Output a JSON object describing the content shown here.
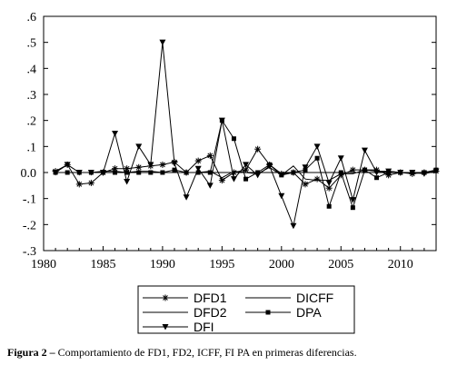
{
  "chart_data": {
    "type": "line",
    "x": [
      1981,
      1982,
      1983,
      1984,
      1985,
      1986,
      1987,
      1988,
      1989,
      1990,
      1991,
      1992,
      1993,
      1994,
      1995,
      1996,
      1997,
      1998,
      1999,
      2000,
      2001,
      2002,
      2003,
      2004,
      2005,
      2006,
      2007,
      2008,
      2009,
      2010,
      2011,
      2012,
      2013
    ],
    "xlim": [
      1980,
      2013
    ],
    "ylim": [
      -0.3,
      0.6
    ],
    "x_ticks": [
      "1980",
      "1985",
      "1990",
      "1995",
      "2000",
      "2005",
      "2010"
    ],
    "x_tick_values": [
      1980,
      1985,
      1990,
      1995,
      2000,
      2005,
      2010
    ],
    "y_ticks": [
      ".6",
      ".5",
      ".4",
      ".3",
      ".2",
      ".1",
      "0.0",
      "-.1",
      "-.2",
      "-.3"
    ],
    "y_tick_values": [
      0.6,
      0.5,
      0.4,
      0.3,
      0.2,
      0.1,
      0.0,
      -0.1,
      -0.2,
      -0.3
    ],
    "grid": false,
    "legend_position": "bottom",
    "series": [
      {
        "name": "DFD1",
        "marker": "star",
        "values": [
          0.005,
          0.03,
          -0.045,
          -0.04,
          0.0,
          0.015,
          0.015,
          0.02,
          0.025,
          0.03,
          0.04,
          0.0,
          0.045,
          0.065,
          -0.03,
          0.0,
          0.01,
          0.09,
          0.03,
          -0.005,
          0.0,
          -0.045,
          -0.025,
          -0.06,
          -0.01,
          0.01,
          0.01,
          0.01,
          -0.01,
          0.0,
          -0.005,
          0.0,
          0.005
        ]
      },
      {
        "name": "DICFF",
        "marker": "none",
        "values": [
          0.0,
          0.0,
          0.0,
          0.0,
          0.0,
          0.0,
          0.0,
          0.0,
          0.0,
          0.0,
          0.0,
          0.0,
          0.0,
          0.0,
          0.0,
          0.0,
          0.0,
          0.0,
          0.0,
          0.0,
          0.0,
          0.0,
          0.0,
          0.0,
          0.0,
          0.0,
          0.0,
          0.0,
          0.0,
          0.0,
          0.0,
          0.0,
          0.0
        ]
      },
      {
        "name": "DFD2",
        "marker": "none",
        "values": [
          0.0,
          0.0,
          0.0,
          0.0,
          0.005,
          0.005,
          0.0,
          0.005,
          0.005,
          0.0,
          0.0,
          0.0,
          0.0,
          0.005,
          -0.02,
          0.005,
          0.0,
          -0.005,
          0.02,
          -0.01,
          0.025,
          -0.025,
          -0.03,
          -0.03,
          -0.005,
          -0.005,
          0.01,
          0.005,
          0.005,
          0.0,
          0.0,
          0.0,
          0.005
        ]
      },
      {
        "name": "DPA",
        "marker": "square",
        "values": [
          0.0,
          0.0,
          0.0,
          0.0,
          0.0,
          0.0,
          0.0,
          0.0,
          0.0,
          0.0,
          0.01,
          0.0,
          0.0,
          0.0,
          0.2,
          0.13,
          -0.025,
          0.0,
          0.03,
          -0.01,
          0.0,
          0.01,
          0.055,
          -0.13,
          0.0,
          -0.135,
          0.01,
          -0.02,
          0.0,
          0.0,
          0.0,
          0.0,
          0.01
        ]
      },
      {
        "name": "DFI",
        "marker": "triangle-down",
        "values": [
          0.0,
          0.03,
          0.0,
          0.0,
          0.0,
          0.15,
          -0.035,
          0.1,
          0.03,
          0.5,
          0.035,
          -0.095,
          0.015,
          -0.05,
          0.2,
          -0.025,
          0.03,
          -0.01,
          0.025,
          -0.09,
          -0.205,
          0.02,
          0.1,
          -0.04,
          0.055,
          -0.105,
          0.085,
          0.0,
          0.005,
          0.0,
          0.0,
          -0.005,
          0.005
        ]
      }
    ]
  },
  "caption": {
    "label": "Figura 2 –",
    "text": " Comportamiento de  FD1, FD2, ICFF, FI PA en primeras diferencias."
  }
}
